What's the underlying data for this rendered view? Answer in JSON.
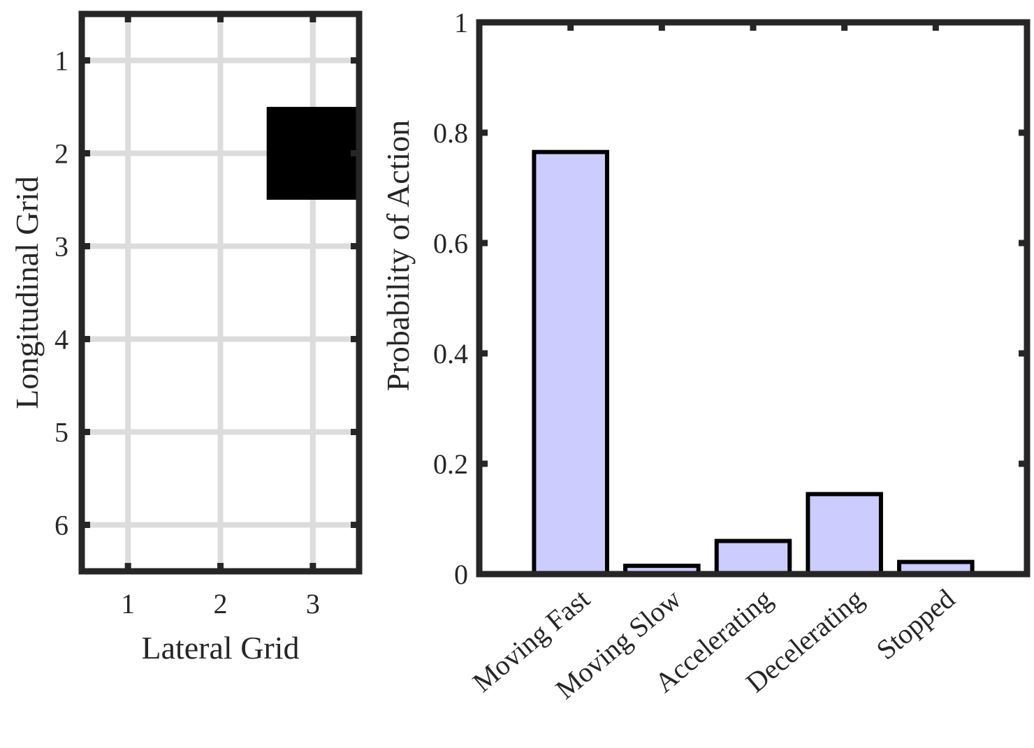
{
  "chart_data": [
    {
      "type": "heatmap",
      "xlabel": "Lateral Grid",
      "ylabel": "Longitudinal Grid",
      "x": [
        1,
        2,
        3
      ],
      "y": [
        1,
        2,
        3,
        4,
        5,
        6
      ],
      "xlim": [
        0.5,
        3.5
      ],
      "ylim": [
        0.5,
        6.5
      ],
      "y_direction": "reversed",
      "grid": true,
      "occupied_cells": [
        {
          "x": 3,
          "y": 2
        }
      ],
      "colors": {
        "occupied": "#000000",
        "empty": "#ffffff",
        "grid": "#dcdcdc",
        "axes": "#262626"
      }
    },
    {
      "type": "bar",
      "xlabel": "",
      "ylabel": "Probability of Action",
      "categories": [
        "Moving Fast",
        "Moving Slow",
        "Accelerating",
        "Decelerating",
        "Stopped"
      ],
      "values": [
        0.765,
        0.015,
        0.06,
        0.145,
        0.022
      ],
      "ylim": [
        0,
        1
      ],
      "yticks": [
        "0",
        "0.2",
        "0.4",
        "0.6",
        "0.8",
        "1"
      ],
      "grid": false,
      "colors": {
        "bar_fill": "#ccccff",
        "bar_edge": "#000000",
        "axes": "#262626"
      }
    }
  ]
}
